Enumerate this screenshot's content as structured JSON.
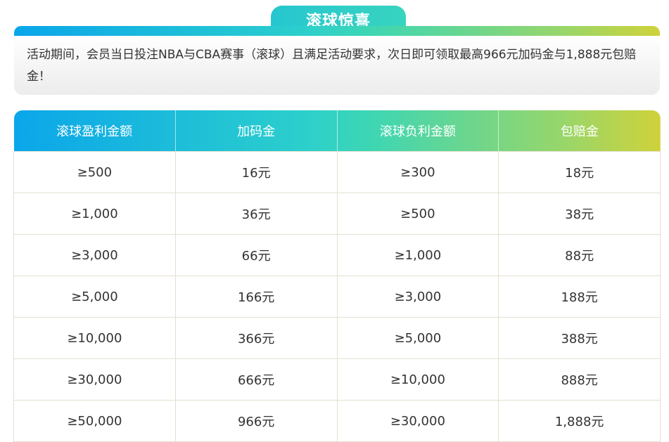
{
  "banner": {
    "title": "滚球惊喜"
  },
  "info": {
    "text": "活动期间，会员当日投注NBA与CBA赛事（滚球）且满足活动要求，次日即可领取最高966元加码金与1,888元包赔金！"
  },
  "table": {
    "headers": [
      "滚球盈利金额",
      "加码金",
      "滚球负利金额",
      "包赔金"
    ],
    "rows": [
      [
        "≥500",
        "16元",
        "≥300",
        "18元"
      ],
      [
        "≥1,000",
        "36元",
        "≥500",
        "38元"
      ],
      [
        "≥3,000",
        "66元",
        "≥1,000",
        "88元"
      ],
      [
        "≥5,000",
        "166元",
        "≥3,000",
        "188元"
      ],
      [
        "≥10,000",
        "366元",
        "≥5,000",
        "388元"
      ],
      [
        "≥30,000",
        "666元",
        "≥10,000",
        "888元"
      ],
      [
        "≥50,000",
        "966元",
        "≥30,000",
        "1,888元"
      ]
    ]
  },
  "colors": {
    "gradient_start": "#0aa6ea",
    "gradient_mid": "#3dd6b4",
    "gradient_end": "#cfd23a"
  }
}
